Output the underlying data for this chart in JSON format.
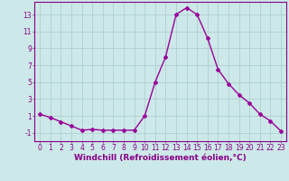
{
  "x": [
    0,
    1,
    2,
    3,
    4,
    5,
    6,
    7,
    8,
    9,
    10,
    11,
    12,
    13,
    14,
    15,
    16,
    17,
    18,
    19,
    20,
    21,
    22,
    23
  ],
  "y": [
    1.2,
    0.8,
    0.3,
    -0.2,
    -0.7,
    -0.6,
    -0.7,
    -0.7,
    -0.7,
    -0.7,
    1.0,
    5.0,
    8.0,
    13.0,
    13.8,
    13.0,
    10.2,
    6.5,
    4.8,
    3.5,
    2.5,
    1.2,
    0.4,
    -0.8
  ],
  "line_color": "#990099",
  "marker": "D",
  "markersize": 2.0,
  "linewidth": 1.0,
  "bg_color": "#cce8e8",
  "grid_color": "#aacaca",
  "xlabel": "Windchill (Refroidissement éolien,°C)",
  "xlabel_fontsize": 6.5,
  "yticks": [
    -1,
    1,
    3,
    5,
    7,
    9,
    11,
    13
  ],
  "xticks": [
    0,
    1,
    2,
    3,
    4,
    5,
    6,
    7,
    8,
    9,
    10,
    11,
    12,
    13,
    14,
    15,
    16,
    17,
    18,
    19,
    20,
    21,
    22,
    23
  ],
  "ylim": [
    -2.0,
    14.5
  ],
  "xlim": [
    -0.5,
    23.5
  ],
  "tick_fontsize": 5.5,
  "tick_color": "#880088",
  "spine_color": "#880088"
}
